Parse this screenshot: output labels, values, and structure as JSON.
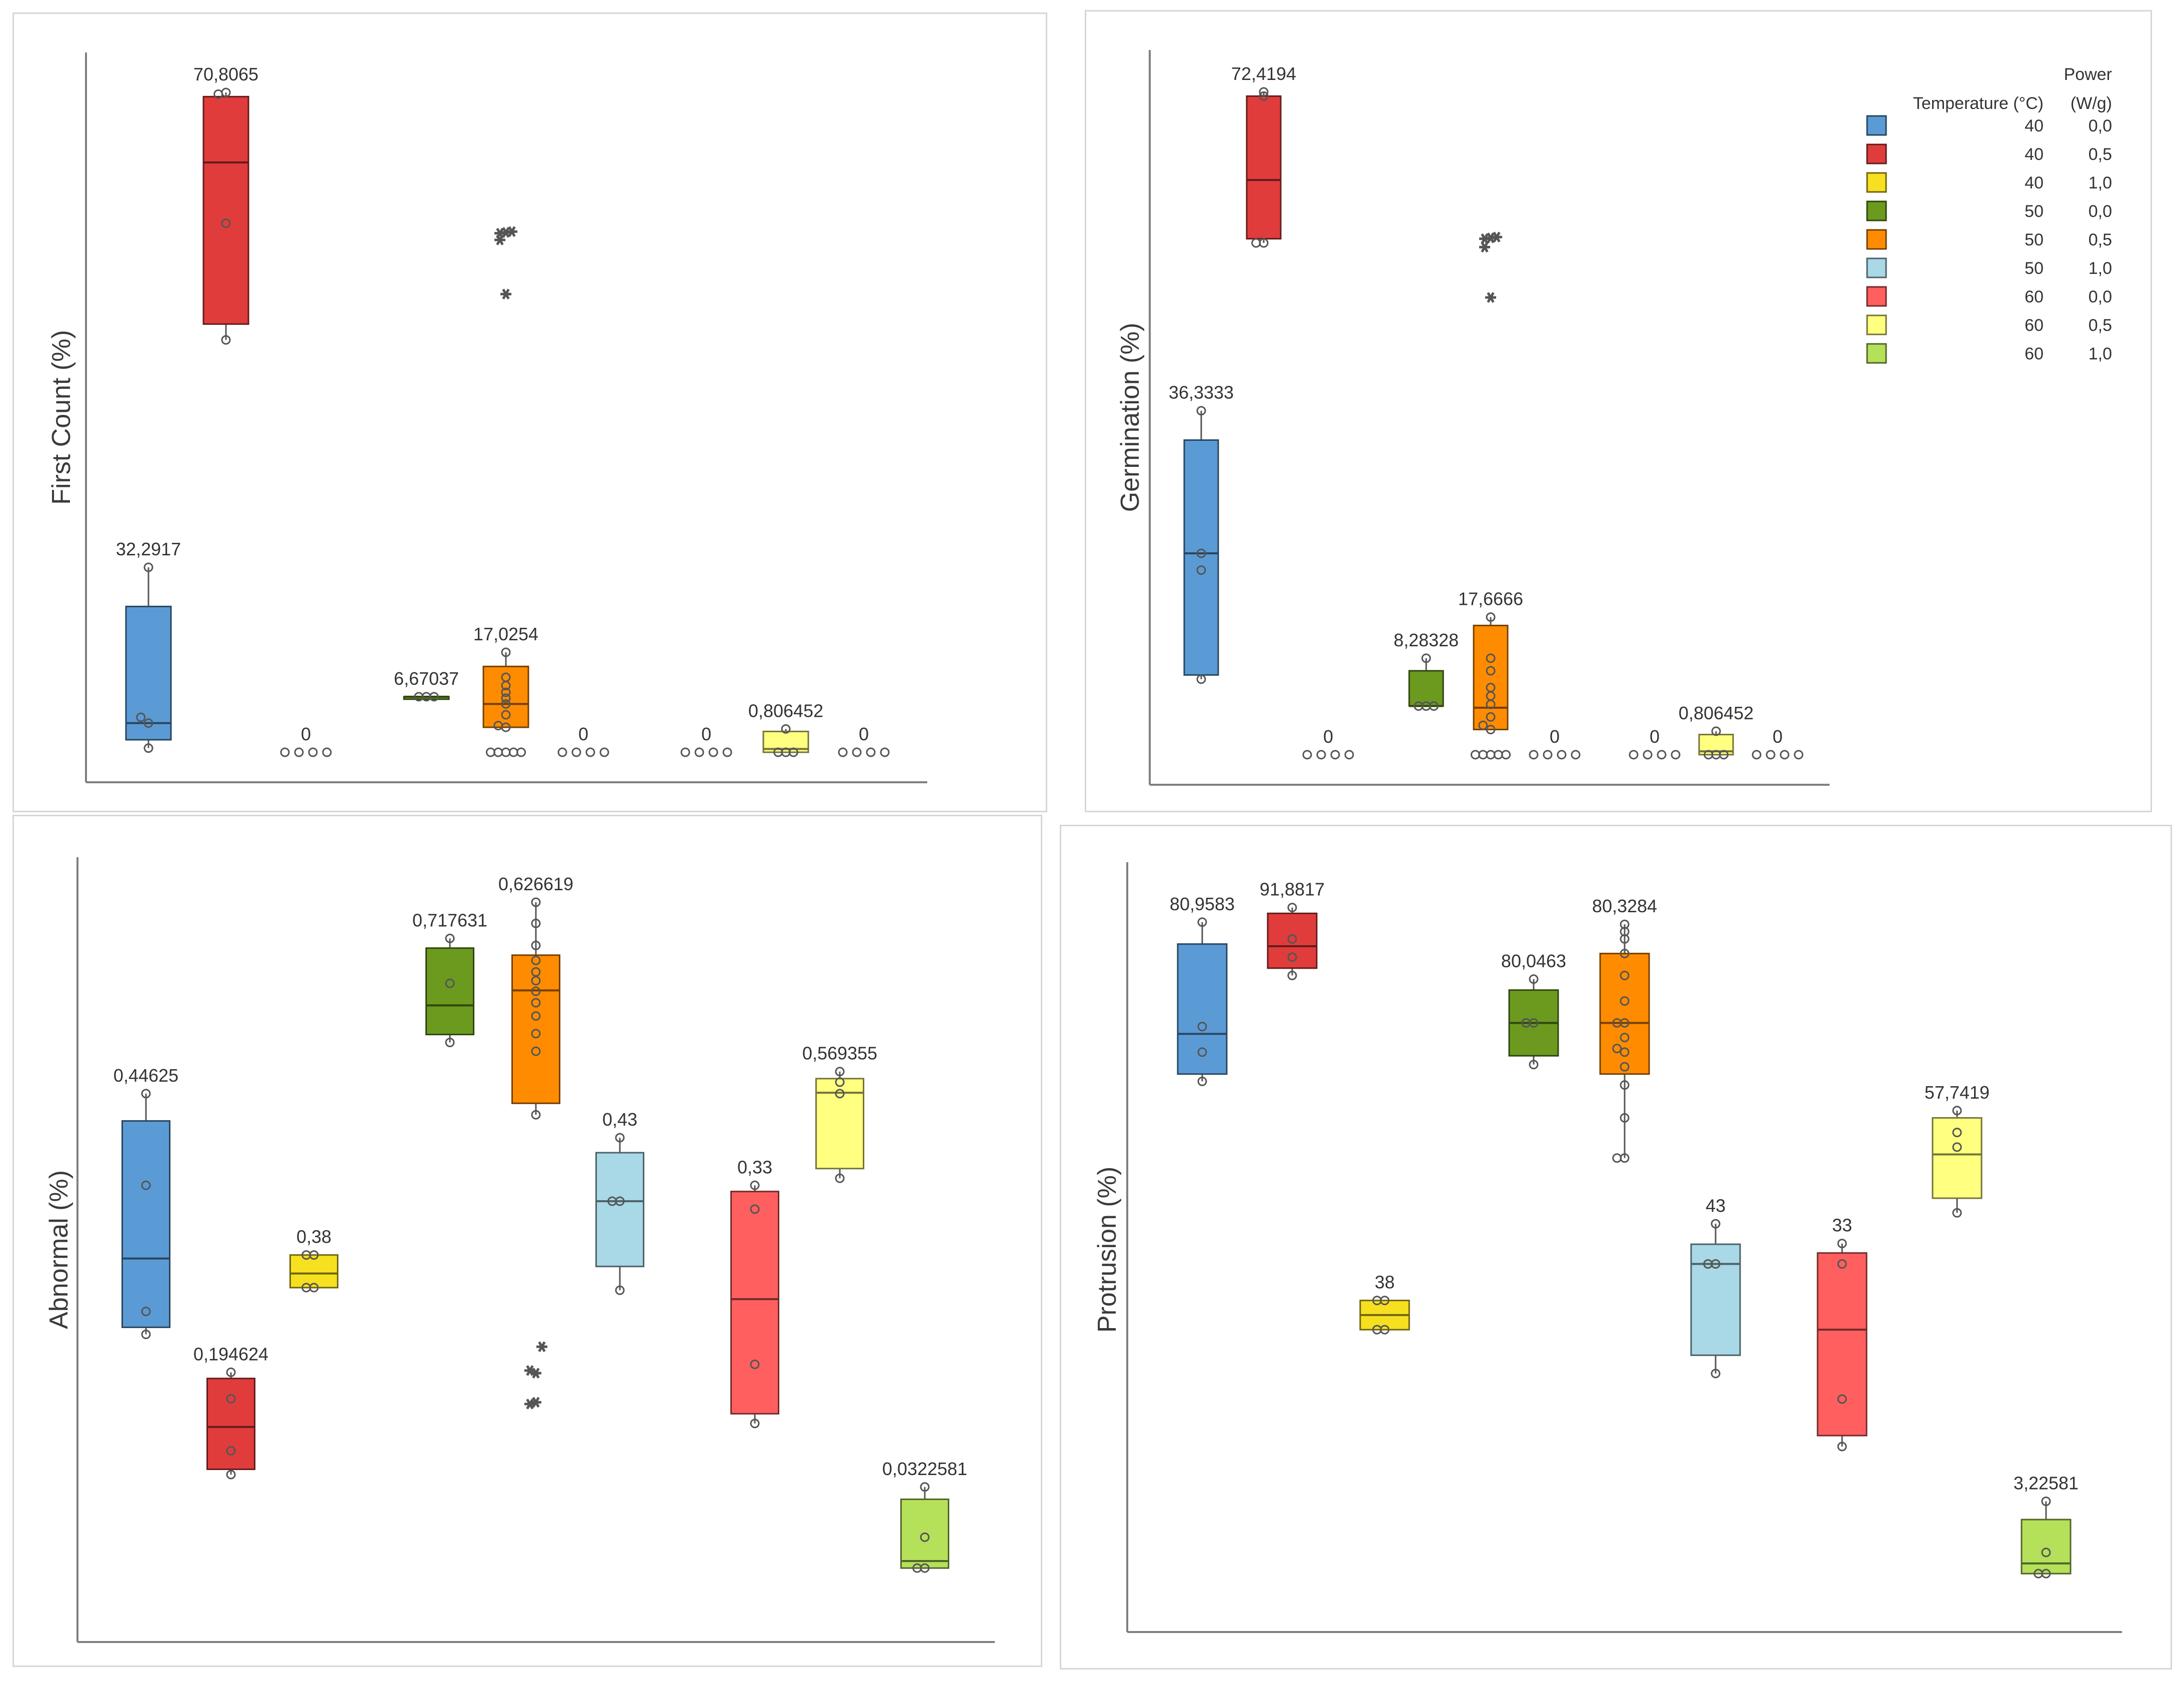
{
  "legend": {
    "header_temperature": "Temperature (°C)",
    "header_power_line1": "Power",
    "header_power_line2": "(W/g)",
    "entries": [
      {
        "temperature": "40",
        "power": "0,0",
        "color": "#5b9bd5"
      },
      {
        "temperature": "40",
        "power": "0,5",
        "color": "#e03c3c"
      },
      {
        "temperature": "40",
        "power": "1,0",
        "color": "#f7e020"
      },
      {
        "temperature": "50",
        "power": "0,0",
        "color": "#6b9a1f"
      },
      {
        "temperature": "50",
        "power": "0,5",
        "color": "#ff8c00"
      },
      {
        "temperature": "50",
        "power": "1,0",
        "color": "#a9d8e6"
      },
      {
        "temperature": "60",
        "power": "0,0",
        "color": "#ff5f5f"
      },
      {
        "temperature": "60",
        "power": "0,5",
        "color": "#ffff80"
      },
      {
        "temperature": "60",
        "power": "1,0",
        "color": "#b5e05a"
      }
    ]
  },
  "chart_data": [
    {
      "type": "box",
      "ylabel": "First Count (%)",
      "ylim": [
        -1.5,
        84
      ],
      "groups": [
        {
          "category": "40 °C / 0,0 W/g",
          "color": "#5b9bd5",
          "q1": 1.5,
          "median": 3.5,
          "q3": 17.5,
          "min": 0.5,
          "max": 22.2,
          "label": "32,2917",
          "points": [
            0.5,
            3.5,
            4.2,
            22.2
          ],
          "outliers": []
        },
        {
          "category": "40 °C / 0,5 W/g",
          "color": "#e03c3c",
          "q1": 51.4,
          "median": 70.8,
          "q3": 78.7,
          "min": 49.5,
          "max": 79.2,
          "label": "70,8065",
          "points": [
            49.5,
            63.5,
            79.2,
            79.0
          ],
          "outliers": []
        },
        {
          "category": "40 °C / 1,0 W/g",
          "color": "#f7e020",
          "q1": 0,
          "median": 0,
          "q3": 0,
          "min": 0,
          "max": 0,
          "label": "0",
          "points": [
            0,
            0,
            0,
            0
          ],
          "outliers": [],
          "label_only": true
        },
        {
          "category": "50 °C / 0,0 W/g",
          "color": "#6b9a1f",
          "q1": 6.67,
          "median": 6.67,
          "q3": 6.67,
          "min": 6.67,
          "max": 6.67,
          "label": "6,67037",
          "points": [
            6.67,
            6.67,
            6.67
          ],
          "outliers": []
        },
        {
          "category": "50 °C / 0,5 W/g",
          "color": "#ff8c00",
          "q1": 3,
          "median": 5.8,
          "q3": 10.3,
          "min": 3,
          "max": 12,
          "label": "17,0254",
          "points": [
            0,
            0,
            0,
            0,
            0,
            3,
            3.2,
            4.5,
            5.8,
            6.5,
            7.2,
            8,
            9,
            12
          ],
          "outliers": [
            62.3,
            62.4,
            62.5,
            61.5,
            55
          ]
        },
        {
          "category": "50 °C / 1,0 W/g",
          "color": "#a9d8e6",
          "q1": 0,
          "median": 0,
          "q3": 0,
          "min": 0,
          "max": 0,
          "label": "0",
          "points": [
            0,
            0,
            0,
            0
          ],
          "outliers": [],
          "label_only": true
        },
        {
          "category": "60 °C / 0,0 W/g",
          "color": "#ff5f5f",
          "q1": 0,
          "median": 0,
          "q3": 0,
          "min": 0,
          "max": 0,
          "label": "0",
          "points": [
            0,
            0,
            0,
            0
          ],
          "outliers": [],
          "label_only": true
        },
        {
          "category": "60 °C / 0,5 W/g",
          "color": "#ffff80",
          "q1": 0,
          "median": 0.4,
          "q3": 2.5,
          "min": 0,
          "max": 2.8,
          "label": "0,806452",
          "points": [
            0,
            0,
            0,
            2.8
          ],
          "outliers": []
        },
        {
          "category": "60 °C / 1,0 W/g",
          "color": "#b5e05a",
          "q1": 0,
          "median": 0,
          "q3": 0,
          "min": 0,
          "max": 0,
          "label": "0",
          "points": [
            0,
            0,
            0,
            0
          ],
          "outliers": [],
          "label_only": true
        }
      ]
    },
    {
      "type": "box",
      "ylabel": "Germination (%)",
      "ylim": [
        -1.5,
        84
      ],
      "groups": [
        {
          "category": "40 °C / 0,0 W/g",
          "color": "#5b9bd5",
          "q1": 9.5,
          "median": 24,
          "q3": 37.5,
          "min": 9,
          "max": 41,
          "label": "36,3333",
          "points": [
            9,
            22,
            24,
            41
          ],
          "outliers": []
        },
        {
          "category": "40 °C / 0,5 W/g",
          "color": "#e03c3c",
          "q1": 61.5,
          "median": 68.5,
          "q3": 78.5,
          "min": 61,
          "max": 79,
          "label": "72,4194",
          "points": [
            61,
            61,
            78.5,
            79
          ],
          "outliers": []
        },
        {
          "category": "40 °C / 1,0 W/g",
          "color": "#f7e020",
          "q1": 0,
          "median": 0,
          "q3": 0,
          "min": 0,
          "max": 0,
          "label": "0",
          "points": [
            0,
            0,
            0,
            0
          ],
          "outliers": [],
          "label_only": true
        },
        {
          "category": "50 °C / 0,0 W/g",
          "color": "#6b9a1f",
          "q1": 5.8,
          "median": 5.8,
          "q3": 10,
          "min": 5.8,
          "max": 11.5,
          "label": "8,28328",
          "points": [
            5.8,
            5.8,
            5.8,
            11.5
          ],
          "outliers": []
        },
        {
          "category": "50 °C / 0,5 W/g",
          "color": "#ff8c00",
          "q1": 3,
          "median": 5.6,
          "q3": 15.4,
          "min": 3,
          "max": 16.4,
          "label": "17,6666",
          "points": [
            0,
            0,
            0,
            0,
            0,
            3,
            3.5,
            4.5,
            6,
            7,
            8,
            10,
            11.5,
            16.4
          ],
          "outliers": [
            61.5,
            61.6,
            61.7,
            60.5,
            54.5
          ]
        },
        {
          "category": "50 °C / 1,0 W/g",
          "color": "#a9d8e6",
          "q1": 0,
          "median": 0,
          "q3": 0,
          "min": 0,
          "max": 0,
          "label": "0",
          "points": [
            0,
            0,
            0,
            0
          ],
          "outliers": [],
          "label_only": true
        },
        {
          "category": "60 °C / 0,0 W/g",
          "color": "#ff5f5f",
          "q1": 0,
          "median": 0,
          "q3": 0,
          "min": 0,
          "max": 0,
          "label": "0",
          "points": [
            0,
            0,
            0,
            0
          ],
          "outliers": [],
          "label_only": true
        },
        {
          "category": "60 °C / 0,5 W/g",
          "color": "#ffff80",
          "q1": 0,
          "median": 0.4,
          "q3": 2.4,
          "min": 0,
          "max": 2.8,
          "label": "0,806452",
          "points": [
            0,
            0,
            0,
            2.8
          ],
          "outliers": []
        },
        {
          "category": "60 °C / 1,0 W/g",
          "color": "#b5e05a",
          "q1": 0,
          "median": 0,
          "q3": 0,
          "min": 0,
          "max": 0,
          "label": "0",
          "points": [
            0,
            0,
            0,
            0
          ],
          "outliers": [],
          "label_only": true
        }
      ]
    },
    {
      "type": "box",
      "ylabel": "Abnormal (%)",
      "ylim": [
        -0.05,
        0.82
      ],
      "groups": [
        {
          "category": "40 °C / 0,0 W/g",
          "color": "#5b9bd5",
          "q1": 0.287,
          "median": 0.365,
          "q3": 0.521,
          "min": 0.279,
          "max": 0.552,
          "label": "0,44625",
          "points": [
            0.279,
            0.305,
            0.448,
            0.552
          ],
          "outliers": []
        },
        {
          "category": "40 °C / 0,5 W/g",
          "color": "#e03c3c",
          "q1": 0.126,
          "median": 0.174,
          "q3": 0.229,
          "min": 0.12,
          "max": 0.236,
          "label": "0,194624",
          "points": [
            0.12,
            0.147,
            0.206,
            0.236
          ],
          "outliers": []
        },
        {
          "category": "40 °C / 1,0 W/g",
          "color": "#f7e020",
          "q1": 0.332,
          "median": 0.348,
          "q3": 0.369,
          "min": 0.332,
          "max": 0.369,
          "label": "0,38",
          "points": [
            0.332,
            0.332,
            0.369,
            0.369
          ],
          "outliers": []
        },
        {
          "category": "50 °C / 0,0 W/g",
          "color": "#6b9a1f",
          "q1": 0.619,
          "median": 0.652,
          "q3": 0.717,
          "min": 0.61,
          "max": 0.728,
          "label": "0,717631",
          "points": [
            0.61,
            0.677,
            0.728
          ],
          "outliers": []
        },
        {
          "category": "50 °C / 0,5 W/g",
          "color": "#ff8c00",
          "q1": 0.541,
          "median": 0.669,
          "q3": 0.709,
          "min": 0.528,
          "max": 0.769,
          "label": "0,626619",
          "points": [
            0.528,
            0.6,
            0.62,
            0.64,
            0.655,
            0.668,
            0.68,
            0.69,
            0.703,
            0.72,
            0.745,
            0.769
          ],
          "outliers": [
            0.2,
            0.235,
            0.265,
            0.238,
            0.202
          ]
        },
        {
          "category": "50 °C / 1,0 W/g",
          "color": "#a9d8e6",
          "q1": 0.356,
          "median": 0.43,
          "q3": 0.485,
          "min": 0.329,
          "max": 0.502,
          "label": "0,43",
          "points": [
            0.329,
            0.43,
            0.43,
            0.502
          ],
          "outliers": []
        },
        {
          "category": "60 °C / 0,0 W/g",
          "color": "#ff5f5f",
          "q1": 0.189,
          "median": 0.319,
          "q3": 0.441,
          "min": 0.178,
          "max": 0.448,
          "label": "0,33",
          "points": [
            0.178,
            0.245,
            0.421,
            0.448
          ],
          "outliers": []
        },
        {
          "category": "60 °C / 0,5 W/g",
          "color": "#ffff80",
          "q1": 0.467,
          "median": 0.553,
          "q3": 0.569,
          "min": 0.456,
          "max": 0.577,
          "label": "0,569355",
          "points": [
            0.456,
            0.552,
            0.565,
            0.577
          ],
          "outliers": []
        },
        {
          "category": "60 °C / 1,0 W/g",
          "color": "#b5e05a",
          "q1": 0.014,
          "median": 0.022,
          "q3": 0.092,
          "min": 0.014,
          "max": 0.106,
          "label": "0,0322581",
          "points": [
            0.014,
            0.014,
            0.049,
            0.106
          ],
          "outliers": []
        }
      ]
    },
    {
      "type": "box",
      "ylabel": "Protrusion (%)",
      "ylim": [
        -3,
        100
      ],
      "groups": [
        {
          "category": "40 °C / 0,0 W/g",
          "color": "#5b9bd5",
          "q1": 71,
          "median": 76.5,
          "q3": 88.8,
          "min": 70,
          "max": 91.8,
          "label": "80,9583",
          "points": [
            70,
            74,
            77.5,
            91.8
          ],
          "outliers": []
        },
        {
          "category": "40 °C / 0,5 W/g",
          "color": "#e03c3c",
          "q1": 85.5,
          "median": 88.5,
          "q3": 93,
          "min": 84.5,
          "max": 93.8,
          "label": "91,8817",
          "points": [
            84.5,
            87,
            89.5,
            93.8
          ],
          "outliers": []
        },
        {
          "category": "40 °C / 1,0 W/g",
          "color": "#f7e020",
          "q1": 36,
          "median": 38,
          "q3": 40,
          "min": 36,
          "max": 40,
          "label": "38",
          "points": [
            36,
            36,
            40,
            40
          ],
          "outliers": []
        },
        {
          "category": "50 °C / 0,0 W/g",
          "color": "#6b9a1f",
          "q1": 73.5,
          "median": 78,
          "q3": 82.5,
          "min": 72.3,
          "max": 84,
          "label": "80,0463",
          "points": [
            72.3,
            78,
            78,
            84
          ],
          "outliers": []
        },
        {
          "category": "50 °C / 0,5 W/g",
          "color": "#ff8c00",
          "q1": 71,
          "median": 78,
          "q3": 87.5,
          "min": 59.5,
          "max": 91.5,
          "label": "80,3284",
          "points": [
            59.5,
            59.5,
            65,
            69.5,
            72,
            74,
            74.5,
            76,
            78,
            78,
            81,
            84.5,
            87.5,
            89.5,
            90.5,
            91.5
          ],
          "outliers": []
        },
        {
          "category": "50 °C / 1,0 W/g",
          "color": "#a9d8e6",
          "q1": 32.5,
          "median": 45,
          "q3": 47.7,
          "min": 30,
          "max": 50.5,
          "label": "43",
          "points": [
            30,
            45,
            45,
            50.5
          ],
          "outliers": []
        },
        {
          "category": "60 °C / 0,0 W/g",
          "color": "#ff5f5f",
          "q1": 21.5,
          "median": 36,
          "q3": 46.5,
          "min": 20,
          "max": 47.8,
          "label": "33",
          "points": [
            20,
            26.5,
            45,
            47.8
          ],
          "outliers": []
        },
        {
          "category": "60 °C / 0,5 W/g",
          "color": "#ffff80",
          "q1": 54,
          "median": 60,
          "q3": 65,
          "min": 52,
          "max": 66,
          "label": "57,7419",
          "points": [
            52,
            61,
            63,
            66
          ],
          "outliers": []
        },
        {
          "category": "60 °C / 1,0 W/g",
          "color": "#b5e05a",
          "q1": 2.6,
          "median": 4,
          "q3": 10,
          "min": 2.6,
          "max": 12.5,
          "label": "3,22581",
          "points": [
            2.6,
            2.6,
            5.5,
            12.5
          ],
          "outliers": []
        }
      ]
    }
  ]
}
